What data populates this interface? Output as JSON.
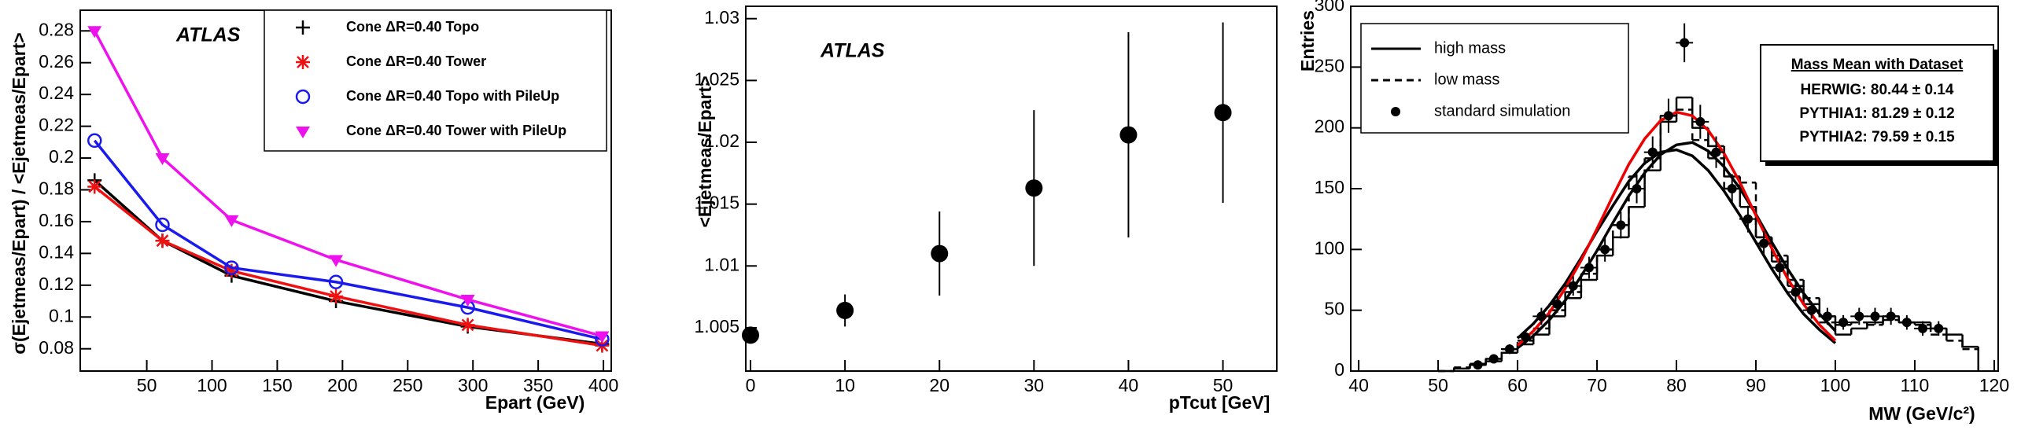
{
  "chart_data": [
    {
      "type": "line",
      "annotation": "ATLAS",
      "xlabel": "Epart (GeV)",
      "ylabel": "σ(Ejetmeas/Epart) / <Ejetmeas/Epart>",
      "x": [
        10,
        62,
        115,
        195,
        296,
        399
      ],
      "xlim": [
        -1,
        406
      ],
      "xticks": [
        50,
        100,
        150,
        200,
        250,
        300,
        350,
        400
      ],
      "ylim": [
        0.066,
        0.293
      ],
      "yticks": [
        0.08,
        0.1,
        0.12,
        0.14,
        0.16,
        0.18,
        0.2,
        0.22,
        0.24,
        0.26,
        0.28
      ],
      "series": [
        {
          "name": "Cone ΔR=0.40 Topo",
          "color": "#000000",
          "marker": "plus",
          "values": [
            0.186,
            0.148,
            0.126,
            0.11,
            0.094,
            0.083
          ]
        },
        {
          "name": "Cone ΔR=0.40 Tower",
          "color": "#ee1111",
          "marker": "star",
          "values": [
            0.182,
            0.148,
            0.129,
            0.113,
            0.095,
            0.082
          ]
        },
        {
          "name": "Cone ΔR=0.40 Topo with PileUp",
          "color": "#1a1aee",
          "marker": "circle",
          "values": [
            0.211,
            0.158,
            0.131,
            0.122,
            0.106,
            0.086
          ]
        },
        {
          "name": "Cone ΔR=0.40 Tower with PileUp",
          "color": "#ee11ee",
          "marker": "triangle-down",
          "values": [
            0.28,
            0.2,
            0.161,
            0.136,
            0.111,
            0.088
          ]
        }
      ]
    },
    {
      "type": "scatter",
      "annotation": "ATLAS",
      "xlabel": "pTcut [GeV]",
      "ylabel": "<Ejetmeas/Epart>",
      "x": [
        0,
        10,
        20,
        30,
        40,
        50
      ],
      "values": [
        1.0044,
        1.0064,
        1.011,
        1.0163,
        1.0206,
        1.0224
      ],
      "errors": [
        0.0003,
        0.0013,
        0.0034,
        0.0063,
        0.0083,
        0.0073
      ],
      "color": "#000000",
      "xlim": [
        -0.5,
        55.7
      ],
      "xticks": [
        0,
        10,
        20,
        30,
        40,
        50
      ],
      "ylim": [
        1.0015,
        1.031
      ],
      "yticks": [
        1.005,
        1.01,
        1.015,
        1.02,
        1.025,
        1.03
      ]
    },
    {
      "type": "histogram",
      "xlabel": "MW (GeV/c²)",
      "ylabel": "Entries",
      "xlim": [
        39,
        120.5
      ],
      "xticks": [
        40,
        50,
        60,
        70,
        80,
        90,
        100,
        110,
        120
      ],
      "ylim": [
        0,
        300
      ],
      "yticks": [
        0,
        50,
        100,
        150,
        200,
        250,
        300
      ],
      "bins": [
        50,
        52,
        54,
        56,
        58,
        60,
        62,
        64,
        66,
        68,
        70,
        72,
        74,
        76,
        78,
        80,
        82,
        84,
        86,
        88,
        90,
        92,
        94,
        96,
        98,
        100,
        102,
        104,
        106,
        108,
        110,
        112,
        114,
        116,
        118
      ],
      "series": [
        {
          "name": "high mass",
          "color": "#000000",
          "dashed": false,
          "values": [
            0,
            2,
            5,
            8,
            15,
            22,
            30,
            45,
            60,
            75,
            95,
            110,
            135,
            165,
            205,
            225,
            200,
            185,
            160,
            135,
            110,
            90,
            70,
            55,
            45,
            30,
            35,
            40,
            45,
            40,
            40,
            35,
            30,
            20
          ]
        },
        {
          "name": "low mass",
          "color": "#000000",
          "dashed": true,
          "values": [
            0,
            3,
            6,
            10,
            18,
            25,
            35,
            50,
            65,
            80,
            100,
            120,
            160,
            175,
            210,
            215,
            190,
            175,
            150,
            155,
            110,
            95,
            75,
            60,
            40,
            38,
            40,
            38,
            42,
            40,
            38,
            30,
            25,
            18
          ]
        }
      ],
      "points": {
        "name": "standard simulation",
        "color": "#000000",
        "x": [
          55,
          57,
          59,
          61,
          63,
          65,
          67,
          69,
          71,
          73,
          75,
          77,
          79,
          81,
          83,
          85,
          87,
          89,
          91,
          93,
          95,
          97,
          99,
          101,
          103,
          105,
          107,
          109,
          111,
          113
        ],
        "values": [
          5,
          10,
          18,
          28,
          45,
          55,
          70,
          85,
          100,
          120,
          150,
          180,
          210,
          270,
          205,
          180,
          150,
          125,
          105,
          85,
          65,
          50,
          45,
          40,
          45,
          45,
          45,
          40,
          35,
          35
        ],
        "errors": [
          2,
          3,
          4,
          5,
          7,
          7,
          8,
          9,
          10,
          11,
          12,
          13,
          14,
          16,
          14,
          13,
          12,
          11,
          10,
          9,
          8,
          7,
          7,
          6,
          7,
          7,
          7,
          6,
          6,
          6
        ]
      },
      "fits": [
        {
          "color": "#000000",
          "x": [
            60,
            62,
            64,
            66,
            68,
            70,
            72,
            74,
            76,
            78,
            80,
            82,
            84,
            86,
            88,
            90,
            92,
            94,
            96,
            98,
            100
          ],
          "values": [
            19,
            29,
            42,
            58,
            78,
            99,
            122,
            144,
            163,
            178,
            186,
            188,
            181,
            168,
            150,
            129,
            106,
            84,
            64,
            47,
            33
          ]
        },
        {
          "color": "#000000",
          "x": [
            60,
            62,
            64,
            66,
            68,
            70,
            72,
            74,
            76,
            78,
            80,
            82,
            84,
            86,
            88,
            90,
            92,
            94,
            96,
            98,
            100
          ],
          "values": [
            27,
            39,
            54,
            72,
            93,
            115,
            136,
            156,
            171,
            180,
            182,
            177,
            165,
            148,
            128,
            106,
            84,
            64,
            47,
            34,
            23
          ]
        },
        {
          "color": "#ee0000",
          "x": [
            60,
            62,
            64,
            66,
            68,
            70,
            72,
            74,
            76,
            78,
            80,
            82,
            84,
            86,
            88,
            90,
            92,
            94,
            96,
            98,
            100
          ],
          "values": [
            21,
            33,
            48,
            68,
            91,
            117,
            144,
            170,
            191,
            206,
            213,
            210,
            198,
            179,
            155,
            128,
            101,
            76,
            55,
            38,
            25
          ]
        }
      ],
      "info_box": {
        "title": "Mass Mean with Dataset",
        "rows": [
          "HERWIG: 80.44 ± 0.14",
          "PYTHIA1: 81.29 ± 0.12",
          "PYTHIA2: 79.59 ± 0.15"
        ]
      }
    }
  ]
}
